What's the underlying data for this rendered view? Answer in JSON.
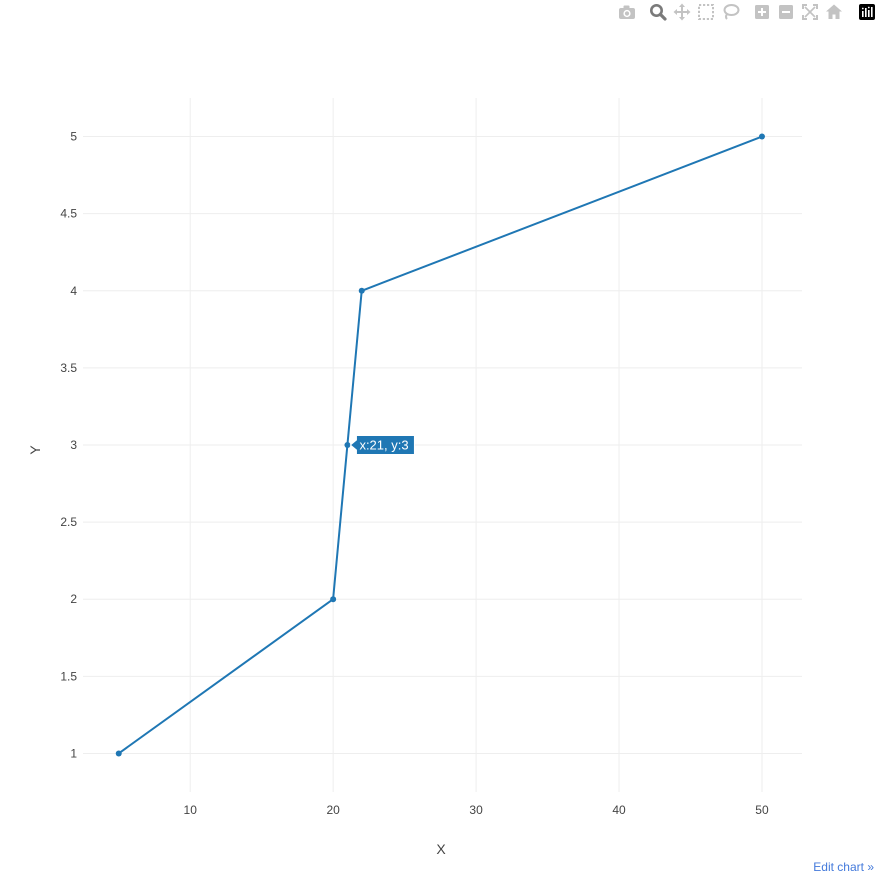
{
  "modebar": {
    "buttons": [
      {
        "icon": "camera-icon"
      },
      {
        "icon": "zoom-icon",
        "active": true
      },
      {
        "icon": "pan-icon"
      },
      {
        "icon": "box-select-icon"
      },
      {
        "icon": "lasso-select-icon"
      },
      {
        "icon": "zoom-in-icon"
      },
      {
        "icon": "zoom-out-icon"
      },
      {
        "icon": "autoscale-icon"
      },
      {
        "icon": "reset-axes-icon"
      },
      {
        "icon": "plotly-logo-icon"
      }
    ]
  },
  "chart_data": {
    "type": "line",
    "title": "",
    "xlabel": "X",
    "ylabel": "Y",
    "series": [
      {
        "x": [
          5,
          20,
          21,
          22,
          50
        ],
        "y": [
          1,
          2,
          3,
          4,
          5
        ],
        "color": "#1f77b4",
        "mode": "lines+markers"
      }
    ],
    "xlim": [
      2.5,
      52.8
    ],
    "ylim": [
      0.75,
      5.25
    ],
    "xticks": [
      10,
      20,
      30,
      40,
      50
    ],
    "yticks": [
      1,
      1.5,
      2,
      2.5,
      3,
      3.5,
      4,
      4.5,
      5
    ],
    "grid": true,
    "hover": {
      "point_index": 2,
      "text": "x:21, y:3"
    }
  },
  "colors": {
    "line": "#1f77b4",
    "grid": "#eeeeee",
    "tick_text": "#444444",
    "modebar_icon": "#c3c3c3",
    "modebar_active": "#7a7a7a",
    "link": "#447adb"
  },
  "edit_link": "Edit chart »"
}
